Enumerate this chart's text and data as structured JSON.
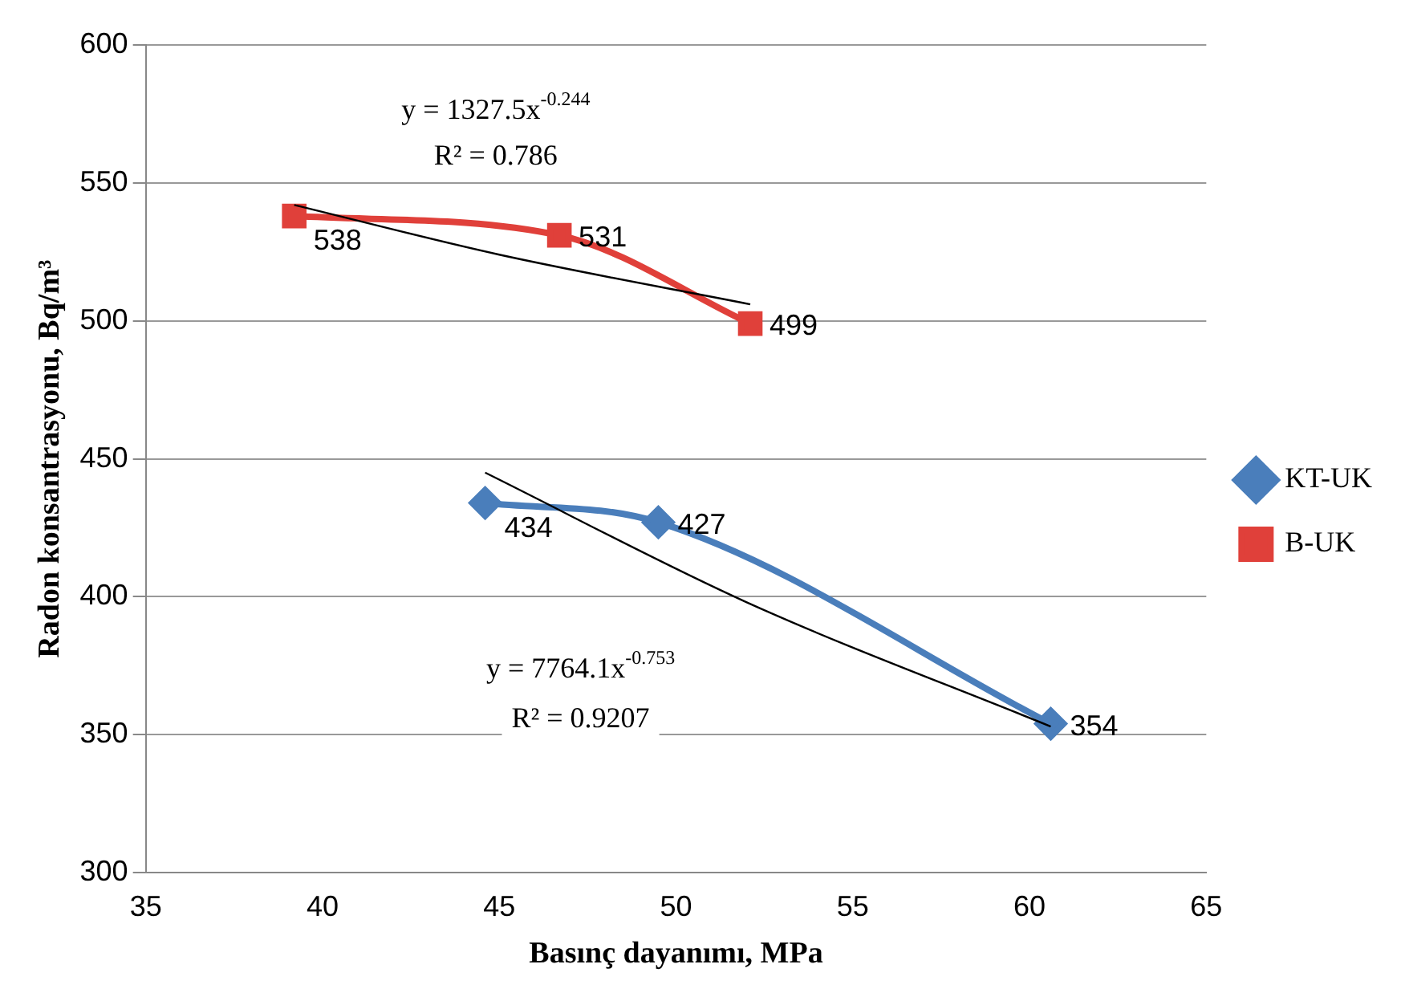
{
  "chart_data": {
    "type": "line",
    "xlabel": "Basınç dayanımı, MPa",
    "ylabel": "Radon konsantrasyonu, Bq/m³",
    "xlim": [
      35,
      65
    ],
    "xticks": [
      35,
      40,
      45,
      50,
      55,
      60,
      65
    ],
    "ylim": [
      300,
      600
    ],
    "yticks": [
      300,
      350,
      400,
      450,
      500,
      550,
      600
    ],
    "grid": "y",
    "legend": "right",
    "series": [
      {
        "name": "KT-UK",
        "color": "#4a7ebb",
        "marker": "diamond",
        "x": [
          44.6,
          49.5,
          60.6
        ],
        "values": [
          434,
          427,
          354
        ],
        "value_labels": [
          "434",
          "427",
          "354"
        ]
      },
      {
        "name": "B-UK",
        "color": "#e0403a",
        "marker": "square",
        "x": [
          39.2,
          46.7,
          52.1
        ],
        "values": [
          538,
          531,
          499
        ],
        "value_labels": [
          "538",
          "531",
          "499"
        ]
      },
      {
        "color": "#000000",
        "marker": "none",
        "x": [
          44.6,
          52,
          60.6
        ],
        "values": [
          445,
          398,
          353
        ]
      },
      {
        "color": "#000000",
        "marker": "none",
        "x": [
          39.2,
          45,
          52.1
        ],
        "values": [
          542,
          524,
          506
        ]
      }
    ],
    "annotations": [
      "y = 1327.5x$^{-0.244}$",
      "R² = 0.786",
      "y = 7764.1x$^{-0.753}$",
      "R² = 0.9207"
    ]
  }
}
